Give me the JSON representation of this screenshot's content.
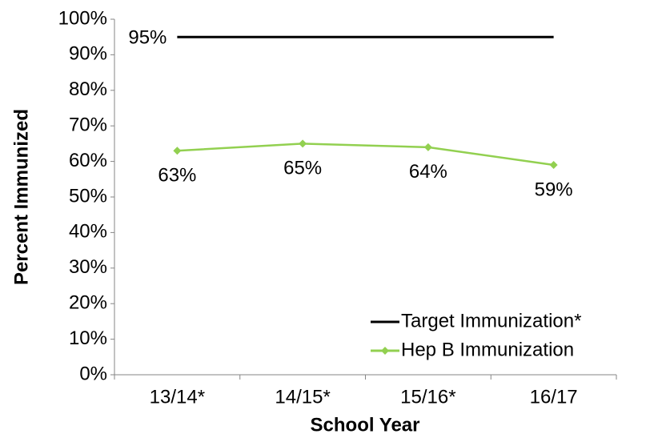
{
  "chart_data": {
    "type": "line",
    "x_label": "School Year",
    "y_label": "Percent Immunized",
    "categories": [
      "13/14*",
      "14/15*",
      "15/16*",
      "16/17"
    ],
    "series": [
      {
        "name": "Target Immunization*",
        "color": "#000000",
        "marker": "none",
        "values": [
          95,
          95,
          95,
          95
        ],
        "value_labels": [
          "95%",
          null,
          null,
          null
        ]
      },
      {
        "name": "Hep B Immunization",
        "color": "#92d050",
        "marker": "diamond",
        "values": [
          63,
          65,
          64,
          59
        ],
        "value_labels": [
          "63%",
          "65%",
          "64%",
          "59%"
        ]
      }
    ],
    "ylim": [
      0,
      100
    ],
    "yticks": [
      {
        "value": 0,
        "label": "0%"
      },
      {
        "value": 10,
        "label": "10%"
      },
      {
        "value": 20,
        "label": "20%"
      },
      {
        "value": 30,
        "label": "30%"
      },
      {
        "value": 40,
        "label": "40%"
      },
      {
        "value": 50,
        "label": "50%"
      },
      {
        "value": 60,
        "label": "60%"
      },
      {
        "value": 70,
        "label": "70%"
      },
      {
        "value": 80,
        "label": "80%"
      },
      {
        "value": 90,
        "label": "90%"
      },
      {
        "value": 100,
        "label": "100%"
      }
    ],
    "grid": false,
    "legend": "lower right"
  }
}
